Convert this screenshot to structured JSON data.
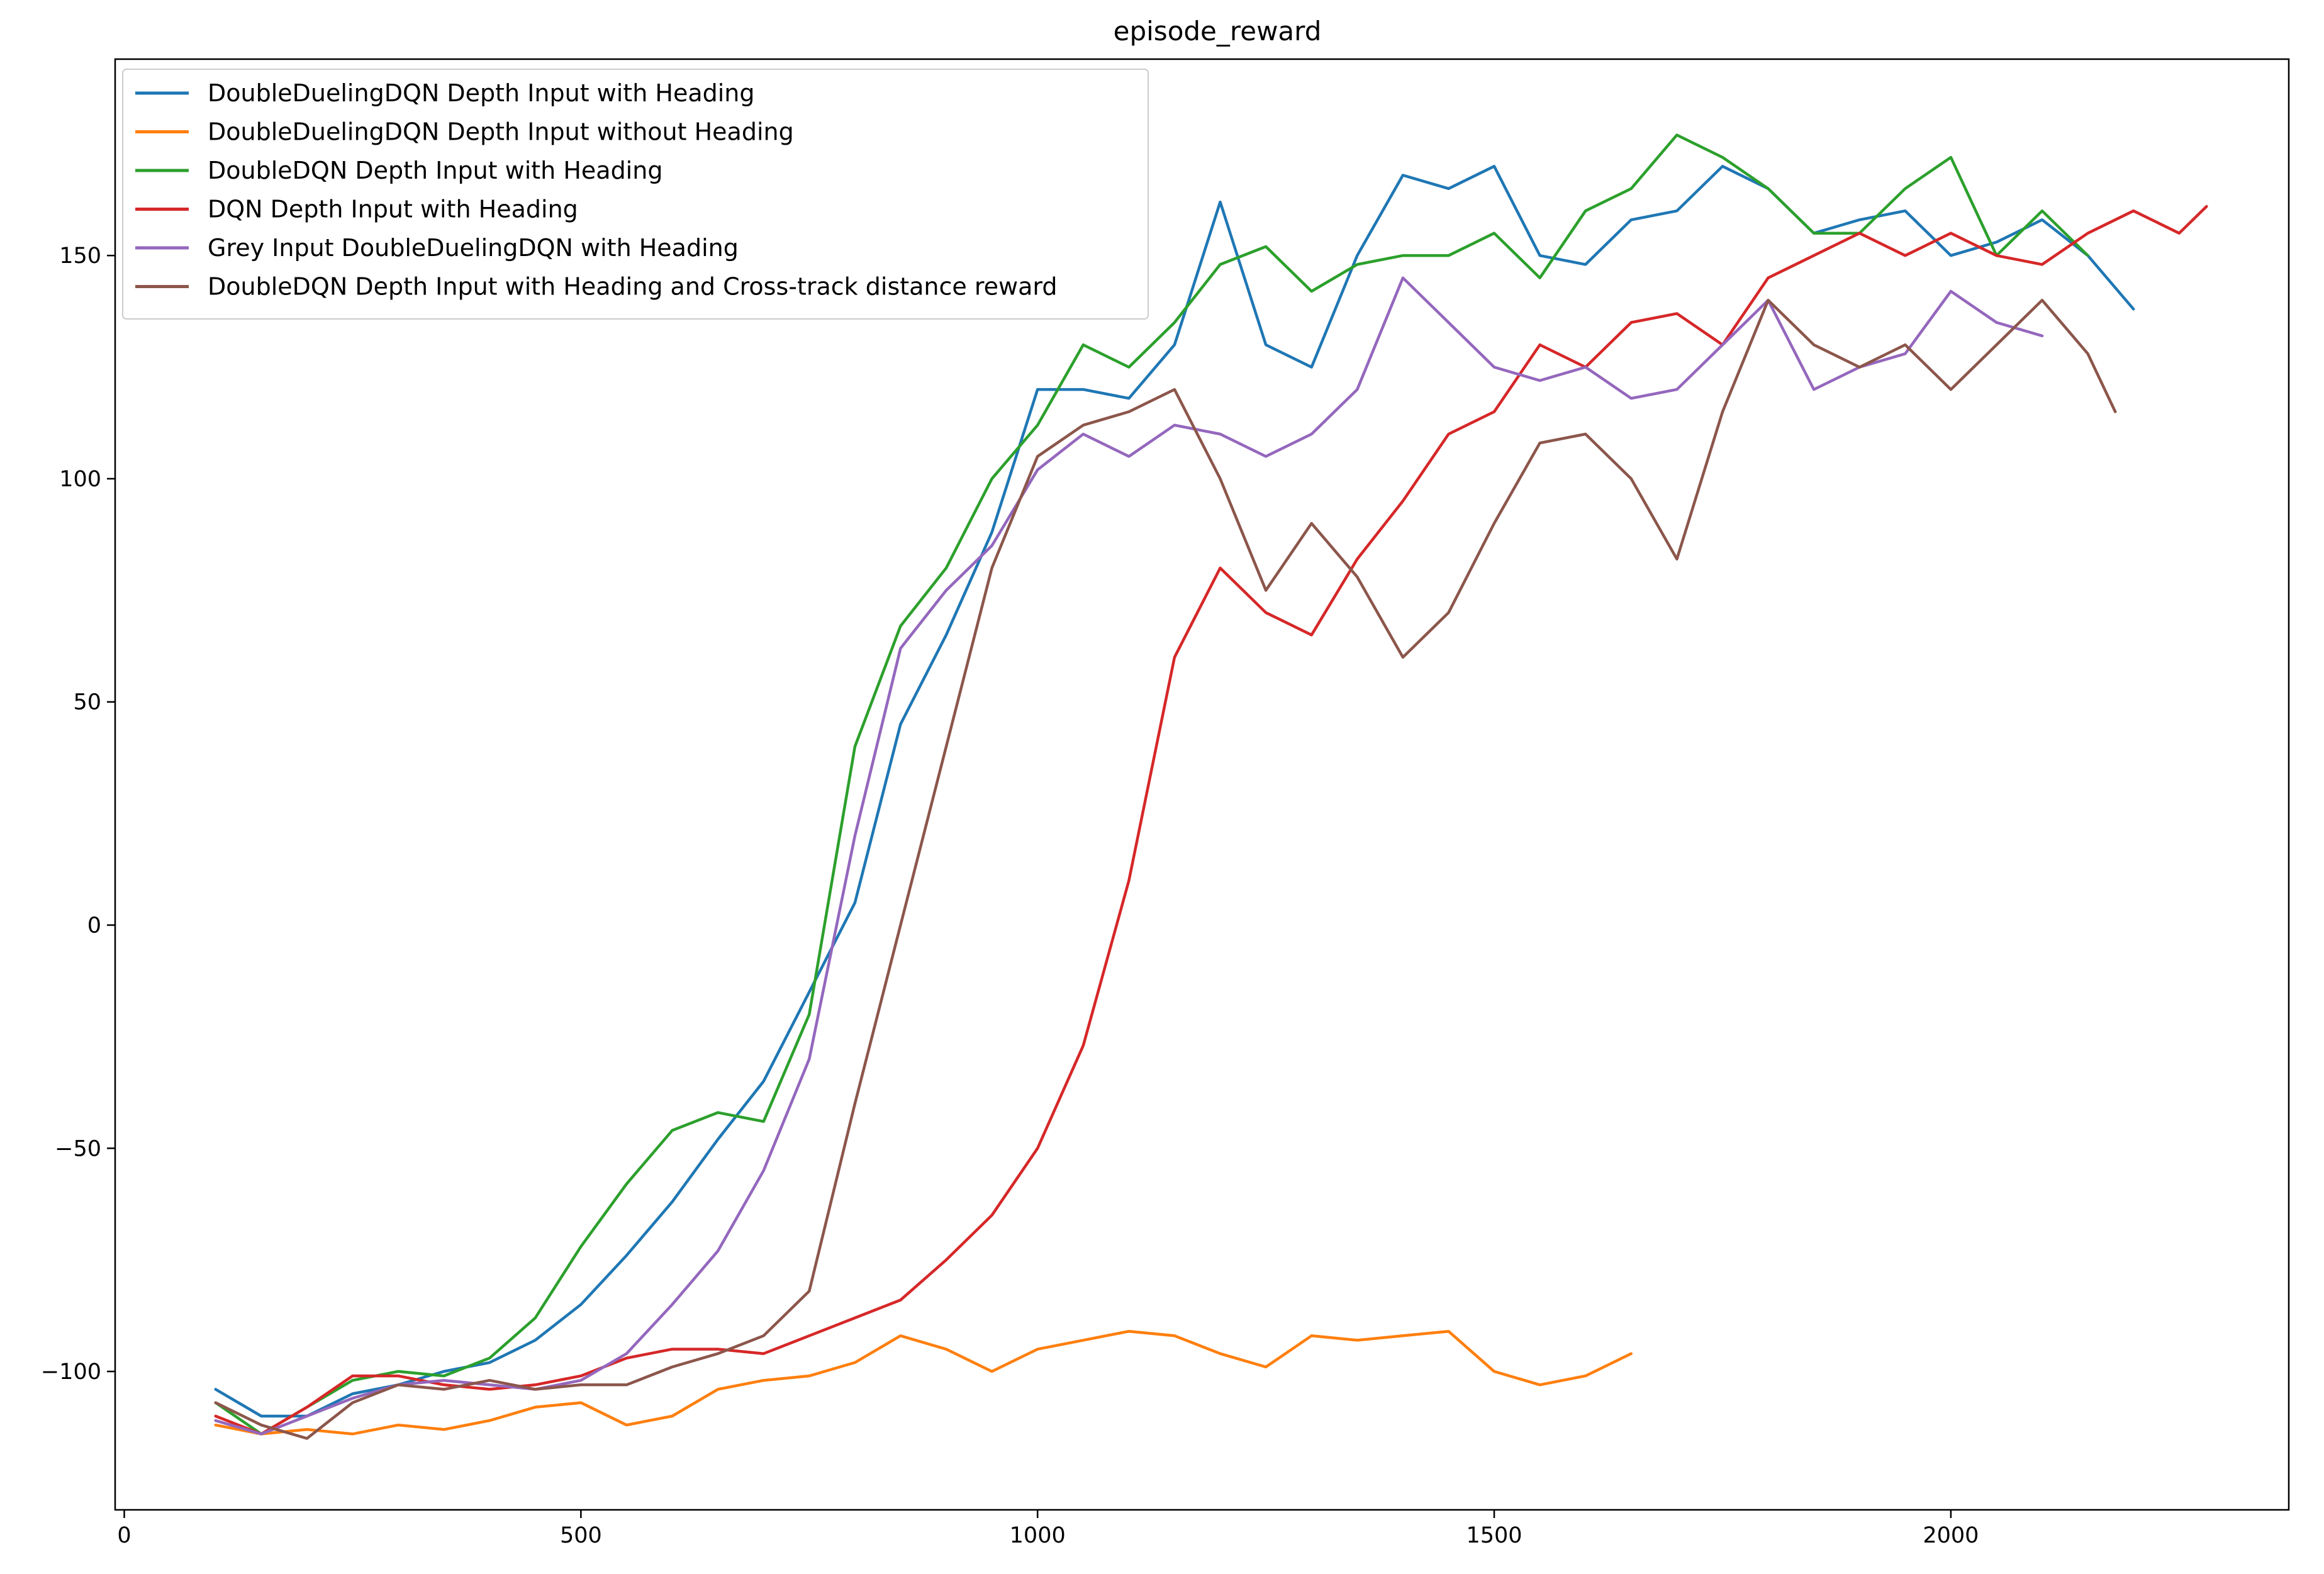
{
  "chart_data": {
    "type": "line",
    "title": "episode_reward",
    "xlabel": "",
    "ylabel": "",
    "xlim": [
      -10,
      2370
    ],
    "ylim": [
      -131,
      194
    ],
    "x_ticks": [
      0,
      500,
      1000,
      1500,
      2000
    ],
    "x_tick_labels": [
      "0",
      "500",
      "1000",
      "1500",
      "2000"
    ],
    "y_ticks": [
      -100,
      -50,
      0,
      50,
      100,
      150
    ],
    "y_tick_labels": [
      "−100",
      "−50",
      "0",
      "50",
      "100",
      "150"
    ],
    "grid": false,
    "legend_position": "upper-left",
    "series": [
      {
        "name": "DoubleDuelingDQN Depth Input with Heading",
        "color": "#1f77b4",
        "x": [
          100,
          150,
          200,
          250,
          300,
          350,
          400,
          450,
          500,
          550,
          600,
          650,
          700,
          750,
          800,
          850,
          900,
          950,
          1000,
          1050,
          1100,
          1150,
          1200,
          1250,
          1300,
          1350,
          1400,
          1450,
          1500,
          1550,
          1600,
          1650,
          1700,
          1750,
          1800,
          1850,
          1900,
          1950,
          2000,
          2050,
          2100,
          2150,
          2200
        ],
        "y": [
          -104,
          -110,
          -110,
          -105,
          -103,
          -100,
          -98,
          -93,
          -85,
          -74,
          -62,
          -48,
          -35,
          -15,
          5,
          45,
          65,
          88,
          120,
          120,
          118,
          130,
          162,
          130,
          125,
          150,
          168,
          165,
          170,
          150,
          148,
          158,
          160,
          170,
          165,
          155,
          158,
          160,
          150,
          153,
          158,
          150,
          138
        ]
      },
      {
        "name": "DoubleDuelingDQN Depth Input without Heading",
        "color": "#ff7f0e",
        "x": [
          100,
          150,
          200,
          250,
          300,
          350,
          400,
          450,
          500,
          550,
          600,
          650,
          700,
          750,
          800,
          850,
          900,
          950,
          1000,
          1050,
          1100,
          1150,
          1200,
          1250,
          1300,
          1350,
          1400,
          1450,
          1500,
          1550,
          1600,
          1650
        ],
        "y": [
          -112,
          -114,
          -113,
          -114,
          -112,
          -113,
          -111,
          -108,
          -107,
          -112,
          -110,
          -104,
          -102,
          -101,
          -98,
          -92,
          -95,
          -100,
          -95,
          -93,
          -91,
          -92,
          -96,
          -99,
          -92,
          -93,
          -92,
          -91,
          -100,
          -103,
          -101,
          -96
        ]
      },
      {
        "name": "DoubleDQN Depth Input with Heading",
        "color": "#2ca02c",
        "x": [
          100,
          150,
          200,
          250,
          300,
          350,
          400,
          450,
          500,
          550,
          600,
          650,
          700,
          750,
          800,
          850,
          900,
          950,
          1000,
          1050,
          1100,
          1150,
          1200,
          1250,
          1300,
          1350,
          1400,
          1450,
          1500,
          1550,
          1600,
          1650,
          1700,
          1750,
          1800,
          1850,
          1900,
          1950,
          2000,
          2050,
          2100,
          2150
        ],
        "y": [
          -107,
          -114,
          -108,
          -102,
          -100,
          -101,
          -97,
          -88,
          -72,
          -58,
          -46,
          -42,
          -44,
          -20,
          40,
          67,
          80,
          100,
          112,
          130,
          125,
          135,
          148,
          152,
          142,
          148,
          150,
          150,
          155,
          145,
          160,
          165,
          177,
          172,
          165,
          155,
          155,
          165,
          172,
          150,
          160,
          150
        ]
      },
      {
        "name": "DQN Depth Input with Heading",
        "color": "#d62728",
        "x": [
          100,
          150,
          200,
          250,
          300,
          350,
          400,
          450,
          500,
          550,
          600,
          650,
          700,
          750,
          800,
          850,
          900,
          950,
          1000,
          1050,
          1100,
          1150,
          1200,
          1250,
          1300,
          1350,
          1400,
          1450,
          1500,
          1550,
          1600,
          1650,
          1700,
          1750,
          1800,
          1850,
          1900,
          1950,
          2000,
          2050,
          2100,
          2150,
          2200,
          2250,
          2280
        ],
        "y": [
          -110,
          -114,
          -108,
          -101,
          -101,
          -103,
          -104,
          -103,
          -101,
          -97,
          -95,
          -95,
          -96,
          -92,
          -88,
          -84,
          -75,
          -65,
          -50,
          -27,
          10,
          60,
          80,
          70,
          65,
          82,
          95,
          110,
          115,
          130,
          125,
          135,
          137,
          130,
          145,
          150,
          155,
          150,
          155,
          150,
          148,
          155,
          160,
          155,
          161
        ]
      },
      {
        "name": "Grey Input DoubleDuelingDQN with Heading",
        "color": "#9467bd",
        "x": [
          100,
          150,
          200,
          250,
          300,
          350,
          400,
          450,
          500,
          550,
          600,
          650,
          700,
          750,
          800,
          850,
          900,
          950,
          1000,
          1050,
          1100,
          1150,
          1200,
          1250,
          1300,
          1350,
          1400,
          1450,
          1500,
          1550,
          1600,
          1650,
          1700,
          1750,
          1800,
          1850,
          1900,
          1950,
          2000,
          2050,
          2100
        ],
        "y": [
          -111,
          -114,
          -110,
          -106,
          -103,
          -102,
          -103,
          -104,
          -102,
          -96,
          -85,
          -73,
          -55,
          -30,
          20,
          62,
          75,
          85,
          102,
          110,
          105,
          112,
          110,
          105,
          110,
          120,
          145,
          135,
          125,
          122,
          125,
          118,
          120,
          130,
          140,
          120,
          125,
          128,
          142,
          135,
          132
        ]
      },
      {
        "name": "DoubleDQN Depth Input with Heading and Cross-track distance reward",
        "color": "#8c564b",
        "x": [
          100,
          150,
          200,
          250,
          300,
          350,
          400,
          450,
          500,
          550,
          600,
          650,
          700,
          750,
          800,
          850,
          900,
          950,
          1000,
          1050,
          1100,
          1150,
          1200,
          1250,
          1300,
          1350,
          1400,
          1450,
          1500,
          1550,
          1600,
          1650,
          1700,
          1750,
          1800,
          1850,
          1900,
          1950,
          2000,
          2050,
          2100,
          2150,
          2180
        ],
        "y": [
          -107,
          -112,
          -115,
          -107,
          -103,
          -104,
          -102,
          -104,
          -103,
          -103,
          -99,
          -96,
          -92,
          -82,
          -40,
          0,
          40,
          80,
          105,
          112,
          115,
          120,
          100,
          75,
          90,
          78,
          60,
          70,
          90,
          108,
          110,
          100,
          82,
          115,
          140,
          130,
          125,
          130,
          120,
          130,
          140,
          128,
          115
        ]
      }
    ]
  }
}
